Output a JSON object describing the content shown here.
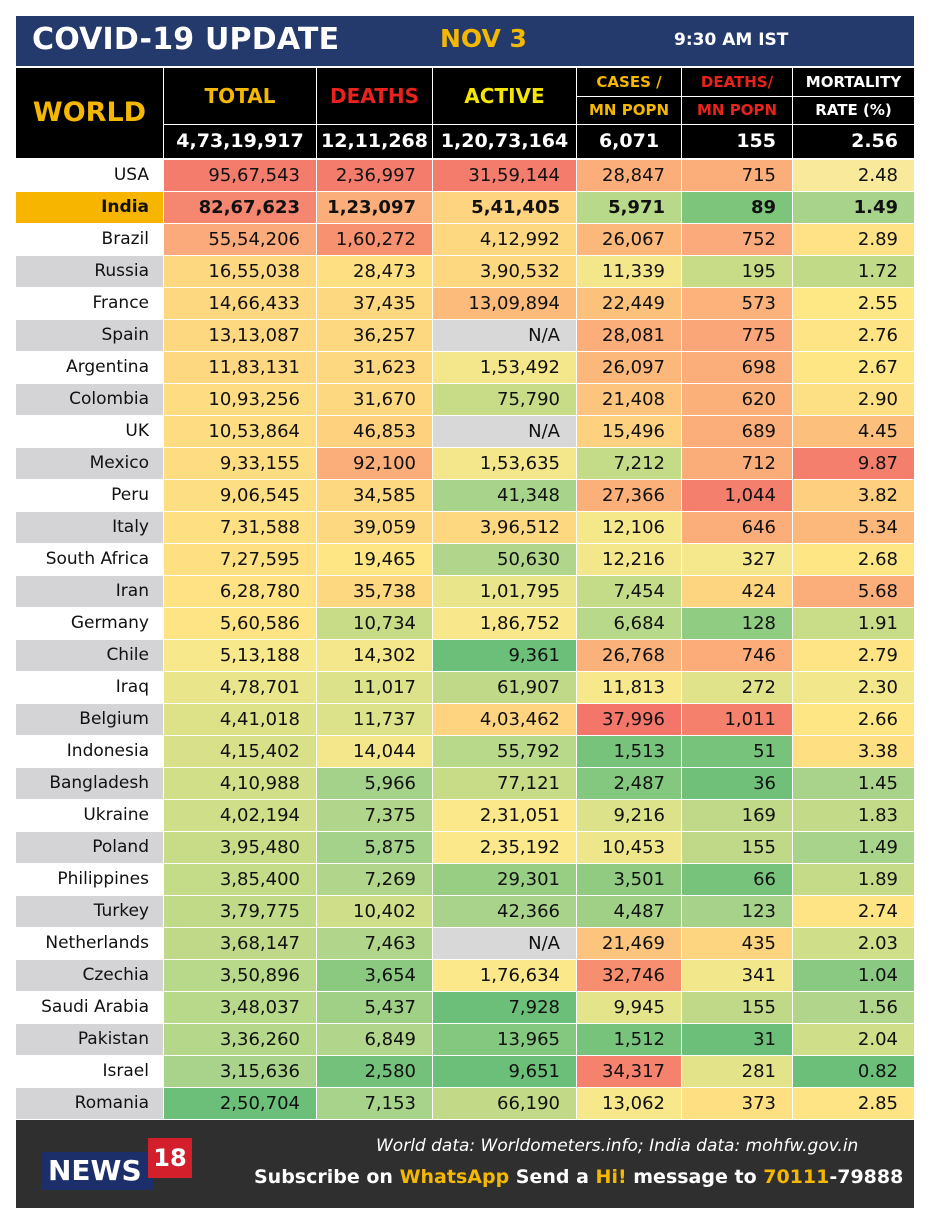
{
  "title": {
    "main": "COVID-19 UPDATE",
    "date": "NOV 3",
    "time": "9:30 AM IST"
  },
  "header": {
    "world": "WORLD",
    "total": "TOTAL",
    "deaths": "DEATHS",
    "active": "ACTIVE",
    "cases_mn_1": "CASES /",
    "cases_mn_2": "MN POPN",
    "deaths_mn_1": "DEATHS/",
    "deaths_mn_2": "MN POPN",
    "mortality_1": "MORTALITY",
    "mortality_2": "RATE (%)",
    "world_total": "4,73,19,917",
    "world_deaths": "12,11,268",
    "world_active": "1,20,73,164",
    "world_cases_mn": "6,071",
    "world_deaths_mn": "155",
    "world_mortality": "2.56"
  },
  "colors": {
    "title_bg": "#243a6c",
    "accent_yellow": "#f5b800",
    "deaths_red": "#e8221c",
    "highlight_row": "#f7b500"
  },
  "rows": [
    {
      "country": "USA",
      "total": "95,67,543",
      "deaths": "2,36,997",
      "active": "31,59,144",
      "cases_mn": "28,847",
      "deaths_mn": "715",
      "mortality": "2.48",
      "name_bg": "#ffffff",
      "bg": [
        "#f47c6c",
        "#f47c6c",
        "#f47c6c",
        "#fbae79",
        "#fbae79",
        "#f9e99a"
      ]
    },
    {
      "country": "India",
      "total": "82,67,623",
      "deaths": "1,23,097",
      "active": "5,41,405",
      "cases_mn": "5,971",
      "deaths_mn": "89",
      "mortality": "1.49",
      "name_bg": "#f7b500",
      "bold": true,
      "bg": [
        "#f5866f",
        "#fbae79",
        "#fed480",
        "#b9d98a",
        "#7cc57b",
        "#a8d38b"
      ]
    },
    {
      "country": "Brazil",
      "total": "55,54,206",
      "deaths": "1,60,272",
      "active": "4,12,992",
      "cases_mn": "26,067",
      "deaths_mn": "752",
      "mortality": "2.89",
      "name_bg": "#ffffff",
      "bg": [
        "#fbaa7b",
        "#f89170",
        "#fed880",
        "#fcb77a",
        "#fbaa7b",
        "#fee285"
      ]
    },
    {
      "country": "Russia",
      "total": "16,55,038",
      "deaths": "28,473",
      "active": "3,90,532",
      "cases_mn": "11,339",
      "deaths_mn": "195",
      "mortality": "1.72",
      "name_bg": "#d4d4d6",
      "bg": [
        "#fed880",
        "#fee083",
        "#fed880",
        "#f4e78b",
        "#c8dc88",
        "#c0da88"
      ]
    },
    {
      "country": "France",
      "total": "14,66,433",
      "deaths": "37,435",
      "active": "13,09,894",
      "cases_mn": "22,449",
      "deaths_mn": "573",
      "mortality": "2.55",
      "name_bg": "#ffffff",
      "bg": [
        "#fed880",
        "#fed880",
        "#fcbb7b",
        "#fcc27c",
        "#fcb27a",
        "#fee886"
      ]
    },
    {
      "country": "Spain",
      "total": "13,13,087",
      "deaths": "36,257",
      "active": "N/A",
      "cases_mn": "28,081",
      "deaths_mn": "775",
      "mortality": "2.76",
      "name_bg": "#d4d4d6",
      "bg": [
        "#fed880",
        "#fed880",
        "#d8d8d8",
        "#fbae79",
        "#fba679",
        "#fee485"
      ]
    },
    {
      "country": "Argentina",
      "total": "11,83,131",
      "deaths": "31,623",
      "active": "1,53,492",
      "cases_mn": "26,097",
      "deaths_mn": "698",
      "mortality": "2.67",
      "name_bg": "#ffffff",
      "bg": [
        "#fed880",
        "#fed880",
        "#f4e78b",
        "#fcb77a",
        "#fbae79",
        "#fee685"
      ]
    },
    {
      "country": "Colombia",
      "total": "10,93,256",
      "deaths": "31,670",
      "active": "75,790",
      "cases_mn": "21,408",
      "deaths_mn": "620",
      "mortality": "2.90",
      "name_bg": "#d4d4d6",
      "bg": [
        "#fedc81",
        "#fed880",
        "#c8dc88",
        "#fcc47c",
        "#fbb07a",
        "#fee084"
      ]
    },
    {
      "country": "UK",
      "total": "10,53,864",
      "deaths": "46,853",
      "active": "N/A",
      "cases_mn": "15,496",
      "deaths_mn": "689",
      "mortality": "4.45",
      "name_bg": "#ffffff",
      "bg": [
        "#fedc81",
        "#fed17f",
        "#d8d8d8",
        "#fdd17f",
        "#fbae79",
        "#fcc07c"
      ]
    },
    {
      "country": "Mexico",
      "total": "9,33,155",
      "deaths": "92,100",
      "active": "1,53,635",
      "cases_mn": "7,212",
      "deaths_mn": "712",
      "mortality": "9.87",
      "name_bg": "#d4d4d6",
      "bg": [
        "#fedc81",
        "#fbae79",
        "#f4e78b",
        "#c4db88",
        "#fbad79",
        "#f47f6c"
      ]
    },
    {
      "country": "Peru",
      "total": "9,06,545",
      "deaths": "34,585",
      "active": "41,348",
      "cases_mn": "27,366",
      "deaths_mn": "1,044",
      "mortality": "3.82",
      "name_bg": "#ffffff",
      "bg": [
        "#fede82",
        "#fed880",
        "#a8d38b",
        "#fbb07a",
        "#f47f6c",
        "#fdcf7f"
      ]
    },
    {
      "country": "Italy",
      "total": "7,31,588",
      "deaths": "39,059",
      "active": "3,96,512",
      "cases_mn": "12,106",
      "deaths_mn": "646",
      "mortality": "5.34",
      "name_bg": "#d4d4d6",
      "bg": [
        "#fee083",
        "#fed880",
        "#fdd880",
        "#f5e88b",
        "#fbae79",
        "#fcb77a"
      ]
    },
    {
      "country": "South Africa",
      "total": "7,27,595",
      "deaths": "19,465",
      "active": "50,630",
      "cases_mn": "12,216",
      "deaths_mn": "327",
      "mortality": "2.68",
      "name_bg": "#ffffff",
      "bg": [
        "#fee083",
        "#fee685",
        "#b1d58a",
        "#f4e78b",
        "#f5e78b",
        "#fee685"
      ]
    },
    {
      "country": "Iran",
      "total": "6,28,780",
      "deaths": "35,738",
      "active": "1,01,795",
      "cases_mn": "7,454",
      "deaths_mn": "424",
      "mortality": "5.68",
      "name_bg": "#d4d4d6",
      "bg": [
        "#fee284",
        "#fed880",
        "#e8e58a",
        "#c4db88",
        "#fdd480",
        "#fbae79"
      ]
    },
    {
      "country": "Germany",
      "total": "5,60,586",
      "deaths": "10,734",
      "active": "1,86,752",
      "cases_mn": "6,684",
      "deaths_mn": "128",
      "mortality": "1.91",
      "name_bg": "#ffffff",
      "bg": [
        "#fee485",
        "#c8dc88",
        "#f9e88b",
        "#b8d88a",
        "#90cc81",
        "#c9dc88"
      ]
    },
    {
      "country": "Chile",
      "total": "5,13,188",
      "deaths": "14,302",
      "active": "9,361",
      "cases_mn": "26,768",
      "deaths_mn": "746",
      "mortality": "2.79",
      "name_bg": "#d4d4d6",
      "bg": [
        "#f7e88b",
        "#f4e78b",
        "#6bbf79",
        "#fbb27a",
        "#fbac79",
        "#fee485"
      ]
    },
    {
      "country": "Iraq",
      "total": "4,78,701",
      "deaths": "11,017",
      "active": "61,907",
      "cases_mn": "11,813",
      "deaths_mn": "272",
      "mortality": "2.30",
      "name_bg": "#ffffff",
      "bg": [
        "#e8e58a",
        "#dce289",
        "#bfd989",
        "#f7e88b",
        "#e0e389",
        "#f3e78b"
      ]
    },
    {
      "country": "Belgium",
      "total": "4,41,018",
      "deaths": "11,737",
      "active": "4,03,462",
      "cases_mn": "37,996",
      "deaths_mn": "1,011",
      "mortality": "2.66",
      "name_bg": "#d4d4d6",
      "bg": [
        "#dde289",
        "#dce289",
        "#fed480",
        "#f4766b",
        "#f5816d",
        "#fee685"
      ]
    },
    {
      "country": "Indonesia",
      "total": "4,15,402",
      "deaths": "14,044",
      "active": "55,792",
      "cases_mn": "1,513",
      "deaths_mn": "51",
      "mortality": "3.38",
      "name_bg": "#ffffff",
      "bg": [
        "#d8e089",
        "#f4e78b",
        "#b8d88a",
        "#78c37c",
        "#78c37c",
        "#fee083"
      ]
    },
    {
      "country": "Bangladesh",
      "total": "4,10,988",
      "deaths": "5,966",
      "active": "77,121",
      "cases_mn": "2,487",
      "deaths_mn": "36",
      "mortality": "1.45",
      "name_bg": "#d4d4d6",
      "bg": [
        "#d2df89",
        "#a4d28a",
        "#c8dc88",
        "#84c77e",
        "#70c07a",
        "#a9d38b"
      ]
    },
    {
      "country": "Ukraine",
      "total": "4,02,194",
      "deaths": "7,375",
      "active": "2,31,051",
      "cases_mn": "9,216",
      "deaths_mn": "169",
      "mortality": "1.83",
      "name_bg": "#ffffff",
      "bg": [
        "#cfde88",
        "#b1d58a",
        "#fbe88b",
        "#dce289",
        "#c0d989",
        "#c3da88"
      ]
    },
    {
      "country": "Poland",
      "total": "3,95,480",
      "deaths": "5,875",
      "active": "2,35,192",
      "cases_mn": "10,453",
      "deaths_mn": "155",
      "mortality": "1.49",
      "name_bg": "#d4d4d6",
      "bg": [
        "#c8dc88",
        "#a4d28a",
        "#fbe88b",
        "#eee68b",
        "#c0d989",
        "#a8d38b"
      ]
    },
    {
      "country": "Philippines",
      "total": "3,85,400",
      "deaths": "7,269",
      "active": "29,301",
      "cases_mn": "3,501",
      "deaths_mn": "66",
      "mortality": "1.89",
      "name_bg": "#ffffff",
      "bg": [
        "#c4db88",
        "#b1d58a",
        "#98cd84",
        "#90cb81",
        "#78c37c",
        "#c6db88"
      ]
    },
    {
      "country": "Turkey",
      "total": "3,79,775",
      "deaths": "10,402",
      "active": "42,366",
      "cases_mn": "4,487",
      "deaths_mn": "123",
      "mortality": "2.74",
      "name_bg": "#d4d4d6",
      "bg": [
        "#c0da88",
        "#cfde88",
        "#a9d38b",
        "#a0d086",
        "#a6d389",
        "#fee485"
      ]
    },
    {
      "country": "Netherlands",
      "total": "3,68,147",
      "deaths": "7,463",
      "active": "N/A",
      "cases_mn": "21,469",
      "deaths_mn": "435",
      "mortality": "2.03",
      "name_bg": "#ffffff",
      "bg": [
        "#bfd989",
        "#b1d58a",
        "#d8d8d8",
        "#fcc47c",
        "#fdd480",
        "#cfde88"
      ]
    },
    {
      "country": "Czechia",
      "total": "3,50,896",
      "deaths": "3,654",
      "active": "1,76,634",
      "cases_mn": "32,746",
      "deaths_mn": "341",
      "mortality": "1.04",
      "name_bg": "#d4d4d6",
      "bg": [
        "#b8d88a",
        "#8bc981",
        "#fbe88b",
        "#f78e70",
        "#f3e78b",
        "#8ac981"
      ]
    },
    {
      "country": "Saudi Arabia",
      "total": "3,48,037",
      "deaths": "5,437",
      "active": "7,928",
      "cases_mn": "9,945",
      "deaths_mn": "155",
      "mortality": "1.56",
      "name_bg": "#ffffff",
      "bg": [
        "#b8d88a",
        "#a0d086",
        "#6bbf79",
        "#e4e48a",
        "#c0d989",
        "#b1d58a"
      ]
    },
    {
      "country": "Pakistan",
      "total": "3,36,260",
      "deaths": "6,849",
      "active": "13,965",
      "cases_mn": "1,512",
      "deaths_mn": "31",
      "mortality": "2.04",
      "name_bg": "#d4d4d6",
      "bg": [
        "#b5d78a",
        "#b1d58a",
        "#84c77e",
        "#78c37c",
        "#6bbf79",
        "#cfde88"
      ]
    },
    {
      "country": "Israel",
      "total": "3,15,636",
      "deaths": "2,580",
      "active": "9,651",
      "cases_mn": "34,317",
      "deaths_mn": "281",
      "mortality": "0.82",
      "name_bg": "#ffffff",
      "bg": [
        "#a9d38b",
        "#73c17b",
        "#6bbf79",
        "#f4826d",
        "#e3e38a",
        "#6bbf79"
      ]
    },
    {
      "country": "Romania",
      "total": "2,50,704",
      "deaths": "7,153",
      "active": "66,190",
      "cases_mn": "13,062",
      "deaths_mn": "373",
      "mortality": "2.85",
      "name_bg": "#d4d4d6",
      "bg": [
        "#6bbf79",
        "#a8d38b",
        "#c2da88",
        "#f7e88b",
        "#fee083",
        "#fee485"
      ]
    }
  ],
  "footer": {
    "logo_news": "NEWS",
    "logo_18": "18",
    "source": "World data: Worldometers.info; India data: mohfw.gov.in",
    "subscribe_1": "Subscribe on ",
    "subscribe_whatsapp": "WhatsApp",
    "subscribe_2": " Send a ",
    "subscribe_hi": "Hi!",
    "subscribe_3": " message to ",
    "subscribe_num1": "70111",
    "subscribe_num2": "-79888"
  }
}
